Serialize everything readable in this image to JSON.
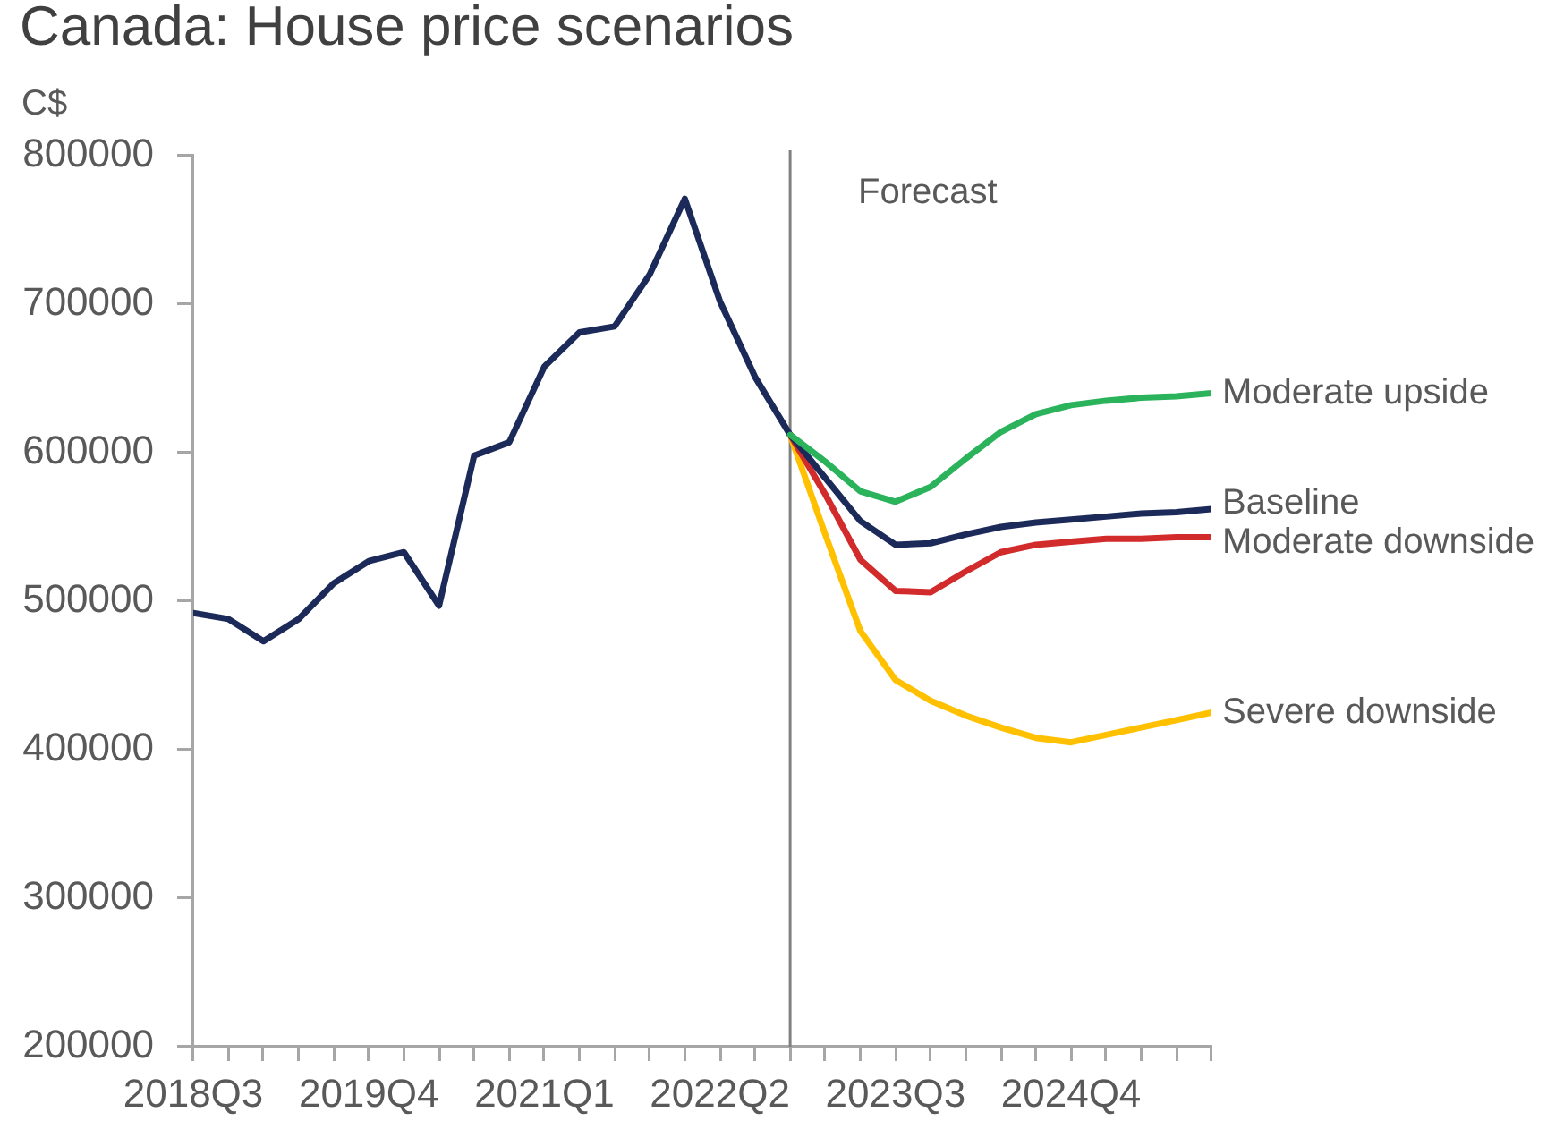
{
  "chart_data": {
    "type": "line",
    "title": "Canada: House price scenarios",
    "ylabel": "C$",
    "x": [
      "2018-07",
      "2018-10",
      "2019-01",
      "2019-04",
      "2019-07",
      "2019-10",
      "2020-01",
      "2020-04",
      "2020-07",
      "2020-10",
      "2021-01",
      "2021-04",
      "2021-07",
      "2021-10",
      "2022-01",
      "2022-04",
      "2022-07",
      "2022-10",
      "2023-01",
      "2023-04",
      "2023-07",
      "2023-10",
      "2024-01",
      "2024-04",
      "2024-07",
      "2024-10",
      "2025-01",
      "2025-04",
      "2025-07",
      "2025-10"
    ],
    "series": [
      {
        "name": "Moderate upside",
        "color": "#2bb35c",
        "values": [
          null,
          null,
          null,
          null,
          null,
          null,
          null,
          null,
          null,
          null,
          null,
          null,
          null,
          null,
          null,
          null,
          null,
          612000,
          594000,
          574000,
          567000,
          577000,
          596000,
          614000,
          626000,
          632000,
          635000,
          637000,
          638000,
          640000
        ]
      },
      {
        "name": "Baseline",
        "color": "#1c2a5a",
        "values": [
          492000,
          488000,
          473000,
          488000,
          512000,
          527000,
          533000,
          497000,
          598000,
          607000,
          658000,
          681000,
          685000,
          720000,
          771000,
          702000,
          651000,
          612000,
          583000,
          554000,
          538000,
          539000,
          545000,
          550000,
          553000,
          555000,
          557000,
          559000,
          560000,
          562000
        ]
      },
      {
        "name": "Moderate downside",
        "color": "#d22b2b",
        "values": [
          null,
          null,
          null,
          null,
          null,
          null,
          null,
          null,
          null,
          null,
          null,
          null,
          null,
          null,
          null,
          null,
          null,
          612000,
          572000,
          528000,
          507000,
          506000,
          520000,
          533000,
          538000,
          540000,
          542000,
          542000,
          543000,
          543000
        ]
      },
      {
        "name": "Severe downside",
        "color": "#ffc000",
        "values": [
          null,
          null,
          null,
          null,
          null,
          null,
          null,
          null,
          null,
          null,
          null,
          null,
          null,
          null,
          null,
          null,
          null,
          612000,
          545000,
          480000,
          447000,
          433000,
          423000,
          415000,
          408000,
          405000,
          410000,
          415000,
          420000,
          425000
        ]
      }
    ],
    "xlim": [
      "2018-07",
      "2025-10"
    ],
    "xticks": [
      {
        "value": "2018-07",
        "label": "2018Q3"
      },
      {
        "value": "2018-10",
        "label": null
      },
      {
        "value": "2019-01",
        "label": null
      },
      {
        "value": "2019-04",
        "label": null
      },
      {
        "value": "2019-07",
        "label": null
      },
      {
        "value": "2019-10",
        "label": "2019Q4"
      },
      {
        "value": "2020-01",
        "label": null
      },
      {
        "value": "2020-04",
        "label": null
      },
      {
        "value": "2020-07",
        "label": null
      },
      {
        "value": "2020-10",
        "label": null
      },
      {
        "value": "2021-01",
        "label": "2021Q1"
      },
      {
        "value": "2021-04",
        "label": null
      },
      {
        "value": "2021-07",
        "label": null
      },
      {
        "value": "2021-10",
        "label": null
      },
      {
        "value": "2022-01",
        "label": null
      },
      {
        "value": "2022-04",
        "label": "2022Q2"
      },
      {
        "value": "2022-07",
        "label": null
      },
      {
        "value": "2022-10",
        "label": null
      },
      {
        "value": "2023-01",
        "label": null
      },
      {
        "value": "2023-04",
        "label": null
      },
      {
        "value": "2023-07",
        "label": "2023Q3"
      },
      {
        "value": "2023-10",
        "label": null
      },
      {
        "value": "2024-01",
        "label": null
      },
      {
        "value": "2024-04",
        "label": null
      },
      {
        "value": "2024-07",
        "label": null
      },
      {
        "value": "2024-10",
        "label": "2024Q4"
      },
      {
        "value": "2025-01",
        "label": null
      },
      {
        "value": "2025-04",
        "label": null
      },
      {
        "value": "2025-07",
        "label": null
      },
      {
        "value": "2025-10",
        "label": null
      }
    ],
    "ylim": [
      200000,
      800000
    ],
    "yticks": [
      200000,
      300000,
      400000,
      500000,
      600000,
      700000,
      800000
    ],
    "ref_lines": [
      {
        "axis": "x",
        "value": "2022-10",
        "label": "Forecast",
        "color": "#808080"
      }
    ],
    "grid": false
  }
}
